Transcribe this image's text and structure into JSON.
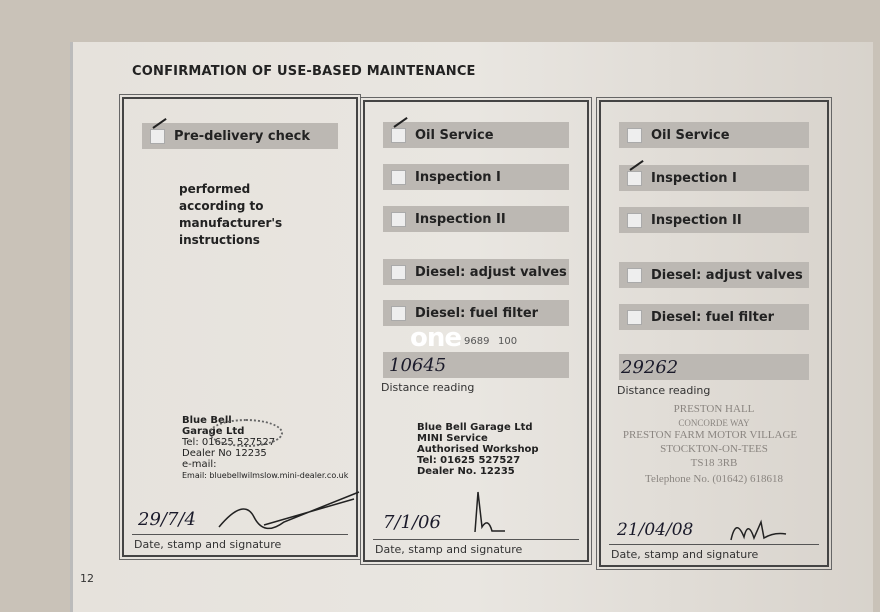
{
  "header": {
    "title": "CONFIRMATION OF USE-BASED MAINTENANCE"
  },
  "page_number": "12",
  "panels": [
    {
      "items": [
        {
          "label": "Pre-delivery check",
          "checked": true
        }
      ],
      "note": [
        "performed",
        "according to",
        "manufacturer's",
        "instructions"
      ],
      "stamp": [
        "Blue Bell",
        "Garage Ltd",
        "Tel: 01625 527527",
        "Dealer No 12235",
        "e-mail:",
        "Email: bluebellwilmslow.mini-dealer.co.uk"
      ],
      "date": "29/7/4",
      "footer": "Date, stamp and signature"
    },
    {
      "items": [
        {
          "label": "Oil Service",
          "checked": true
        },
        {
          "label": "Inspection I",
          "checked": false
        },
        {
          "label": "Inspection II",
          "checked": false
        },
        {
          "label": "Diesel: adjust valves",
          "checked": false
        },
        {
          "label": "Diesel: fuel filter",
          "checked": false
        }
      ],
      "distance": "10645",
      "distance_label": "Distance reading",
      "stamp": [
        "Blue Bell Garage Ltd",
        "MINI Service",
        "Authorised Workshop",
        "Tel: 01625 527527",
        "Dealer No. 12235"
      ],
      "date": "7/1/06",
      "footer": "Date, stamp and signature"
    },
    {
      "items": [
        {
          "label": "Oil Service",
          "checked": false
        },
        {
          "label": "Inspection I",
          "checked": true
        },
        {
          "label": "Inspection II",
          "checked": false
        },
        {
          "label": "Diesel: adjust valves",
          "checked": false
        },
        {
          "label": "Diesel: fuel filter",
          "checked": false
        }
      ],
      "distance": "29262",
      "distance_label": "Distance reading",
      "stamp": [
        "PRESTON HALL",
        "CONCORDE WAY",
        "PRESTON FARM MOTOR VILLAGE",
        "STOCKTON-ON-TEES",
        "TS18 3RB",
        "Telephone No. (01642) 618618"
      ],
      "date": "21/04/08",
      "footer": "Date, stamp and signature"
    }
  ],
  "overlay": {
    "logo": "one",
    "left_number": "9689",
    "right_number": "100"
  }
}
